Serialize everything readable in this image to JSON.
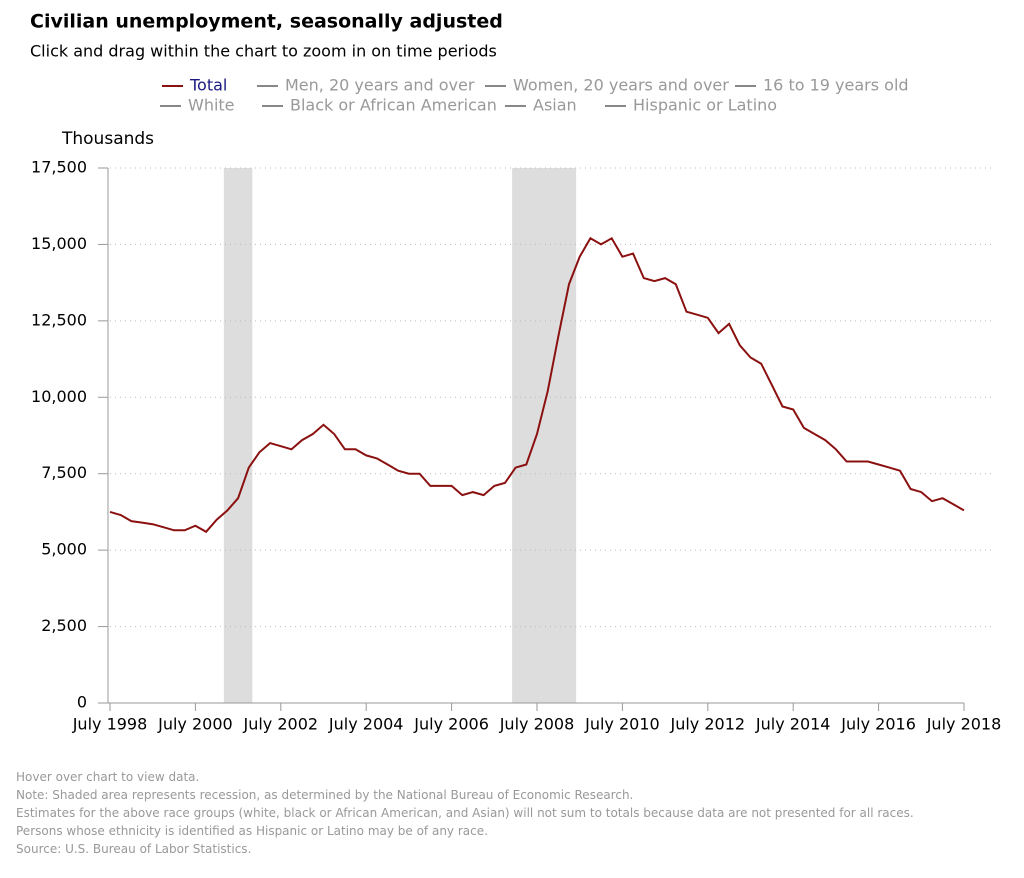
{
  "chart_data": {
    "type": "line",
    "title": "Civilian unemployment, seasonally adjusted",
    "subtitle": "Click and drag within the chart to zoom in on time periods",
    "y_label": "Thousands",
    "x": [
      "1998-07",
      "1998-10",
      "1999-01",
      "1999-04",
      "1999-07",
      "1999-10",
      "2000-01",
      "2000-04",
      "2000-07",
      "2000-10",
      "2001-01",
      "2001-04",
      "2001-07",
      "2001-10",
      "2002-01",
      "2002-04",
      "2002-07",
      "2002-10",
      "2003-01",
      "2003-04",
      "2003-07",
      "2003-10",
      "2004-01",
      "2004-04",
      "2004-07",
      "2004-10",
      "2005-01",
      "2005-04",
      "2005-07",
      "2005-10",
      "2006-01",
      "2006-04",
      "2006-07",
      "2006-10",
      "2007-01",
      "2007-04",
      "2007-07",
      "2007-10",
      "2008-01",
      "2008-04",
      "2008-07",
      "2008-10",
      "2009-01",
      "2009-04",
      "2009-07",
      "2009-10",
      "2010-01",
      "2010-04",
      "2010-07",
      "2010-10",
      "2011-01",
      "2011-04",
      "2011-07",
      "2011-10",
      "2012-01",
      "2012-04",
      "2012-07",
      "2012-10",
      "2013-01",
      "2013-04",
      "2013-07",
      "2013-10",
      "2014-01",
      "2014-04",
      "2014-07",
      "2014-10",
      "2015-01",
      "2015-04",
      "2015-07",
      "2015-10",
      "2016-01",
      "2016-04",
      "2016-07",
      "2016-10",
      "2017-01",
      "2017-04",
      "2017-07",
      "2017-10",
      "2018-01",
      "2018-04",
      "2018-07"
    ],
    "series": [
      {
        "name": "Total",
        "color": "#8b1111",
        "visible": true,
        "values": [
          6250,
          6150,
          5950,
          5900,
          5850,
          5750,
          5650,
          5650,
          5800,
          5600,
          6000,
          6300,
          6700,
          7700,
          8200,
          8500,
          8400,
          8300,
          8600,
          8800,
          9100,
          8800,
          8300,
          8300,
          8100,
          8000,
          7800,
          7600,
          7500,
          7500,
          7100,
          7100,
          7100,
          6800,
          6900,
          6800,
          7100,
          7200,
          7700,
          7800,
          8800,
          10200,
          12000,
          13700,
          14600,
          15200,
          15000,
          15200,
          14600,
          14700,
          13900,
          13800,
          13900,
          13700,
          12800,
          12700,
          12600,
          12100,
          12400,
          11700,
          11300,
          11100,
          10400,
          9700,
          9600,
          9000,
          8800,
          8600,
          8300,
          7900,
          7900,
          7900,
          7800,
          7700,
          7600,
          7000,
          6900,
          6600,
          6700,
          6500,
          6300
        ]
      },
      {
        "name": "Men, 20 years and over",
        "color": "#888888",
        "visible": false
      },
      {
        "name": "Women, 20 years and over",
        "color": "#888888",
        "visible": false
      },
      {
        "name": "16 to 19 years old",
        "color": "#888888",
        "visible": false
      },
      {
        "name": "White",
        "color": "#888888",
        "visible": false
      },
      {
        "name": "Black or African American",
        "color": "#888888",
        "visible": false
      },
      {
        "name": "Asian",
        "color": "#888888",
        "visible": false
      },
      {
        "name": "Hispanic or Latino",
        "color": "#888888",
        "visible": false
      }
    ],
    "recessions": [
      {
        "start": "2001-03",
        "end": "2001-11"
      },
      {
        "start": "2007-12",
        "end": "2009-06"
      }
    ],
    "recession_color": "#dddddd",
    "xlim": [
      "1998-07",
      "2018-07"
    ],
    "xticks": [
      {
        "value": "1998-07",
        "label": "July 1998"
      },
      {
        "value": "2000-07",
        "label": "July 2000"
      },
      {
        "value": "2002-07",
        "label": "July 2002"
      },
      {
        "value": "2004-07",
        "label": "July 2004"
      },
      {
        "value": "2006-07",
        "label": "July 2006"
      },
      {
        "value": "2008-07",
        "label": "July 2008"
      },
      {
        "value": "2010-07",
        "label": "July 2010"
      },
      {
        "value": "2012-07",
        "label": "July 2012"
      },
      {
        "value": "2014-07",
        "label": "July 2014"
      },
      {
        "value": "2016-07",
        "label": "July 2016"
      },
      {
        "value": "2018-07",
        "label": "July 2018"
      }
    ],
    "ylim": [
      0,
      17500
    ],
    "yticks": [
      0,
      {
        "value": 2500,
        "label": "2,500"
      },
      {
        "value": 5000,
        "label": "5,000"
      },
      {
        "value": 7500,
        "label": "7,500"
      },
      {
        "value": 10000,
        "label": "10,000"
      },
      {
        "value": 12500,
        "label": "12,500"
      },
      {
        "value": 15000,
        "label": "15,000"
      },
      {
        "value": 17500,
        "label": "17,500"
      }
    ],
    "grid": true,
    "notes": [
      "Hover over chart to view data.",
      "Note: Shaded area represents recession, as determined by the National Bureau of Economic Research.",
      "Estimates for the above race groups (white, black or African American, and Asian) will not sum to totals because data are not presented for all races.",
      "Persons whose ethnicity is identified as Hispanic or Latino may be of any race.",
      "Source: U.S. Bureau of Labor Statistics."
    ]
  }
}
